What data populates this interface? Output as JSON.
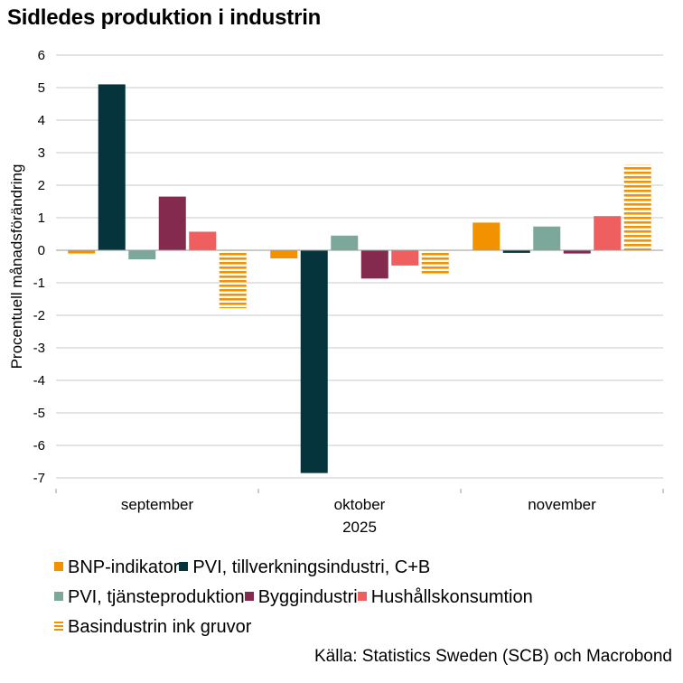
{
  "chart_data": {
    "type": "bar",
    "title": "Sidledes produktion i industrin",
    "ylabel": "Procentuell månadsförändring",
    "xlabel": "2025",
    "ylim": [
      -7,
      6
    ],
    "yticks": [
      6,
      5,
      4,
      3,
      2,
      1,
      0,
      -1,
      -2,
      -3,
      -4,
      -5,
      -6,
      -7
    ],
    "ytick_labels": [
      "6",
      "5",
      "4",
      "3",
      "2",
      "1",
      "0",
      "-1",
      "-2",
      "-3",
      "-4",
      "-5",
      "-6",
      "-7"
    ],
    "grid": true,
    "categories": [
      "september",
      "oktober",
      "november"
    ],
    "series": [
      {
        "name": "BNP-indikator",
        "color": "#f39200",
        "pattern": "solid",
        "values": [
          -0.1,
          -0.25,
          0.85
        ]
      },
      {
        "name": "PVI, tillverkningsindustri, C+B",
        "color": "#06343d",
        "pattern": "solid",
        "values": [
          5.1,
          -6.85,
          -0.08
        ]
      },
      {
        "name": "PVI, tjänsteproduktion",
        "color": "#7ba89a",
        "pattern": "solid",
        "values": [
          -0.28,
          0.45,
          0.73
        ]
      },
      {
        "name": "Byggindustri",
        "color": "#832a4e",
        "pattern": "solid",
        "values": [
          1.65,
          -0.87,
          -0.1
        ]
      },
      {
        "name": "Hushållskonsumtion",
        "color": "#ef5f5f",
        "pattern": "solid",
        "values": [
          0.57,
          -0.47,
          1.05
        ]
      },
      {
        "name": "Basindustrin ink gruvor",
        "color": "#f39200",
        "pattern": "striped",
        "values": [
          -1.78,
          -0.73,
          2.63
        ]
      }
    ]
  },
  "legend_rows": [
    [
      "BNP-indikator",
      "PVI, tillverkningsindustri, C+B"
    ],
    [
      "PVI, tjänsteproduktion",
      "Byggindustri",
      "Hushållskonsumtion"
    ],
    [
      "Basindustrin ink gruvor"
    ]
  ],
  "source": "Källa: Statistics Sweden (SCB) och Macrobond"
}
